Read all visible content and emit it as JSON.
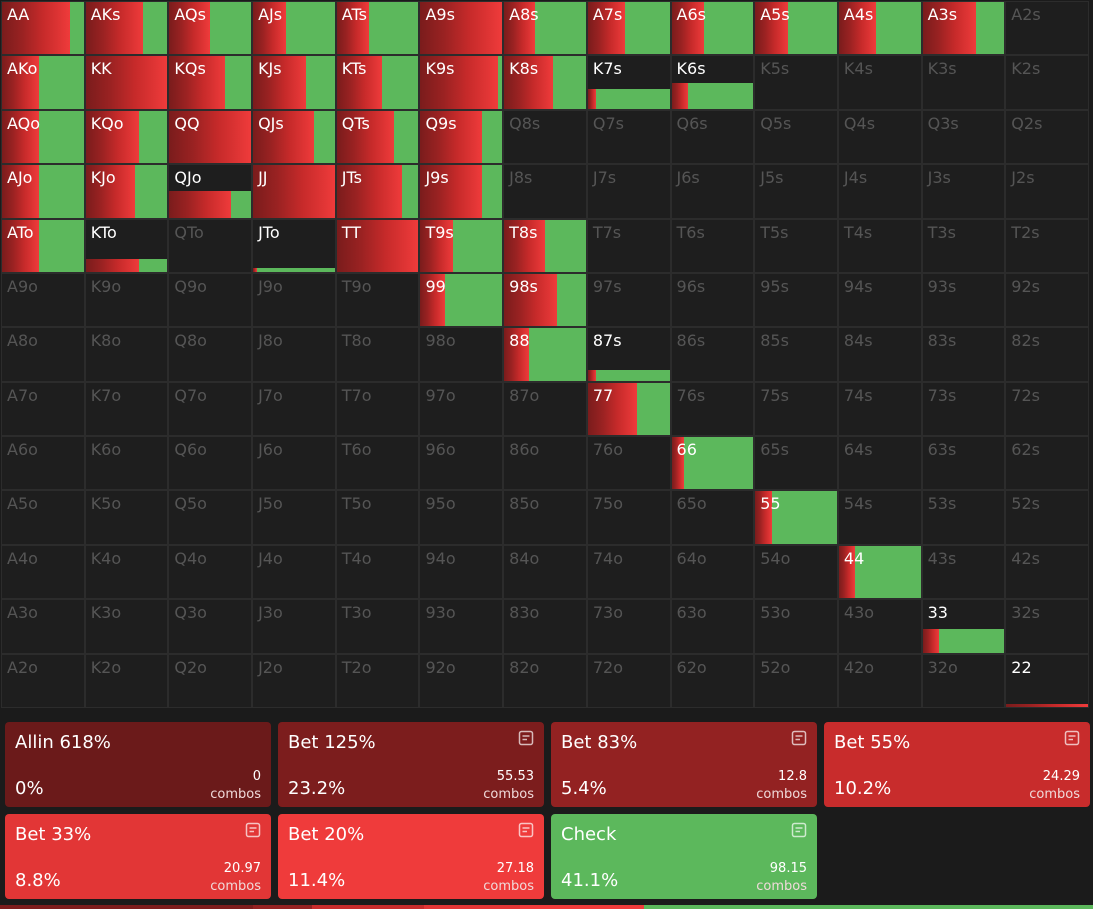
{
  "grid": {
    "rows": [
      [
        {
          "hand": "AA",
          "bet": 83,
          "check": 17,
          "weight": 100
        },
        {
          "hand": "AKs",
          "bet": 70,
          "check": 30,
          "weight": 100
        },
        {
          "hand": "AQs",
          "bet": 50,
          "check": 50,
          "weight": 100
        },
        {
          "hand": "AJs",
          "bet": 40,
          "check": 60,
          "weight": 100
        },
        {
          "hand": "ATs",
          "bet": 40,
          "check": 60,
          "weight": 100
        },
        {
          "hand": "A9s",
          "bet": 100,
          "check": 0,
          "weight": 100
        },
        {
          "hand": "A8s",
          "bet": 38,
          "check": 62,
          "weight": 100
        },
        {
          "hand": "A7s",
          "bet": 45,
          "check": 55,
          "weight": 100
        },
        {
          "hand": "A6s",
          "bet": 40,
          "check": 60,
          "weight": 100
        },
        {
          "hand": "A5s",
          "bet": 40,
          "check": 60,
          "weight": 100
        },
        {
          "hand": "A4s",
          "bet": 45,
          "check": 55,
          "weight": 100
        },
        {
          "hand": "A3s",
          "bet": 65,
          "check": 35,
          "weight": 100
        },
        {
          "hand": "A2s"
        }
      ],
      [
        {
          "hand": "AKo",
          "bet": 45,
          "check": 55,
          "weight": 100
        },
        {
          "hand": "KK",
          "bet": 100,
          "check": 0,
          "weight": 100
        },
        {
          "hand": "KQs",
          "bet": 68,
          "check": 32,
          "weight": 100
        },
        {
          "hand": "KJs",
          "bet": 65,
          "check": 35,
          "weight": 100
        },
        {
          "hand": "KTs",
          "bet": 55,
          "check": 45,
          "weight": 100
        },
        {
          "hand": "K9s",
          "bet": 95,
          "check": 5,
          "weight": 100
        },
        {
          "hand": "K8s",
          "bet": 60,
          "check": 40,
          "weight": 100
        },
        {
          "hand": "K7s",
          "bet": 10,
          "check": 90,
          "weight": 38
        },
        {
          "hand": "K6s",
          "bet": 20,
          "check": 80,
          "weight": 50
        },
        {
          "hand": "K5s"
        },
        {
          "hand": "K4s"
        },
        {
          "hand": "K3s"
        },
        {
          "hand": "K2s"
        }
      ],
      [
        {
          "hand": "AQo",
          "bet": 45,
          "check": 55,
          "weight": 100
        },
        {
          "hand": "KQo",
          "bet": 65,
          "check": 35,
          "weight": 100
        },
        {
          "hand": "QQ",
          "bet": 100,
          "check": 0,
          "weight": 100
        },
        {
          "hand": "QJs",
          "bet": 75,
          "check": 25,
          "weight": 100
        },
        {
          "hand": "QTs",
          "bet": 70,
          "check": 30,
          "weight": 100
        },
        {
          "hand": "Q9s",
          "bet": 75,
          "check": 25,
          "weight": 100
        },
        {
          "hand": "Q8s"
        },
        {
          "hand": "Q7s"
        },
        {
          "hand": "Q6s"
        },
        {
          "hand": "Q5s"
        },
        {
          "hand": "Q4s"
        },
        {
          "hand": "Q3s"
        },
        {
          "hand": "Q2s"
        }
      ],
      [
        {
          "hand": "AJo",
          "bet": 45,
          "check": 55,
          "weight": 100
        },
        {
          "hand": "KJo",
          "bet": 60,
          "check": 40,
          "weight": 100
        },
        {
          "hand": "QJo",
          "bet": 75,
          "check": 25,
          "weight": 50
        },
        {
          "hand": "JJ",
          "bet": 100,
          "check": 0,
          "weight": 100
        },
        {
          "hand": "JTs",
          "bet": 80,
          "check": 20,
          "weight": 100
        },
        {
          "hand": "J9s",
          "bet": 75,
          "check": 25,
          "weight": 100
        },
        {
          "hand": "J8s"
        },
        {
          "hand": "J7s"
        },
        {
          "hand": "J6s"
        },
        {
          "hand": "J5s"
        },
        {
          "hand": "J4s"
        },
        {
          "hand": "J3s"
        },
        {
          "hand": "J2s"
        }
      ],
      [
        {
          "hand": "ATo",
          "bet": 45,
          "check": 55,
          "weight": 100
        },
        {
          "hand": "KTo",
          "bet": 65,
          "check": 35,
          "weight": 25
        },
        {
          "hand": "QTo"
        },
        {
          "hand": "JTo",
          "bet": 5,
          "check": 95,
          "weight": 8
        },
        {
          "hand": "TT",
          "bet": 100,
          "check": 0,
          "weight": 100
        },
        {
          "hand": "T9s",
          "bet": 40,
          "check": 60,
          "weight": 100
        },
        {
          "hand": "T8s",
          "bet": 50,
          "check": 50,
          "weight": 100
        },
        {
          "hand": "T7s"
        },
        {
          "hand": "T6s"
        },
        {
          "hand": "T5s"
        },
        {
          "hand": "T4s"
        },
        {
          "hand": "T3s"
        },
        {
          "hand": "T2s"
        }
      ],
      [
        {
          "hand": "A9o"
        },
        {
          "hand": "K9o"
        },
        {
          "hand": "Q9o"
        },
        {
          "hand": "J9o"
        },
        {
          "hand": "T9o"
        },
        {
          "hand": "99",
          "bet": 30,
          "check": 70,
          "weight": 100
        },
        {
          "hand": "98s",
          "bet": 65,
          "check": 35,
          "weight": 100
        },
        {
          "hand": "97s"
        },
        {
          "hand": "96s"
        },
        {
          "hand": "95s"
        },
        {
          "hand": "94s"
        },
        {
          "hand": "93s"
        },
        {
          "hand": "92s"
        }
      ],
      [
        {
          "hand": "A8o"
        },
        {
          "hand": "K8o"
        },
        {
          "hand": "Q8o"
        },
        {
          "hand": "J8o"
        },
        {
          "hand": "T8o"
        },
        {
          "hand": "98o"
        },
        {
          "hand": "88",
          "bet": 30,
          "check": 70,
          "weight": 100
        },
        {
          "hand": "87s",
          "bet": 10,
          "check": 90,
          "weight": 20
        },
        {
          "hand": "86s"
        },
        {
          "hand": "85s"
        },
        {
          "hand": "84s"
        },
        {
          "hand": "83s"
        },
        {
          "hand": "82s"
        }
      ],
      [
        {
          "hand": "A7o"
        },
        {
          "hand": "K7o"
        },
        {
          "hand": "Q7o"
        },
        {
          "hand": "J7o"
        },
        {
          "hand": "T7o"
        },
        {
          "hand": "97o"
        },
        {
          "hand": "87o"
        },
        {
          "hand": "77",
          "bet": 60,
          "check": 40,
          "weight": 100
        },
        {
          "hand": "76s"
        },
        {
          "hand": "75s"
        },
        {
          "hand": "74s"
        },
        {
          "hand": "73s"
        },
        {
          "hand": "72s"
        }
      ],
      [
        {
          "hand": "A6o"
        },
        {
          "hand": "K6o"
        },
        {
          "hand": "Q6o"
        },
        {
          "hand": "J6o"
        },
        {
          "hand": "T6o"
        },
        {
          "hand": "96o"
        },
        {
          "hand": "86o"
        },
        {
          "hand": "76o"
        },
        {
          "hand": "66",
          "bet": 15,
          "check": 85,
          "weight": 100
        },
        {
          "hand": "65s"
        },
        {
          "hand": "64s"
        },
        {
          "hand": "63s"
        },
        {
          "hand": "62s"
        }
      ],
      [
        {
          "hand": "A5o"
        },
        {
          "hand": "K5o"
        },
        {
          "hand": "Q5o"
        },
        {
          "hand": "J5o"
        },
        {
          "hand": "T5o"
        },
        {
          "hand": "95o"
        },
        {
          "hand": "85o"
        },
        {
          "hand": "75o"
        },
        {
          "hand": "65o"
        },
        {
          "hand": "55",
          "bet": 20,
          "check": 80,
          "weight": 100
        },
        {
          "hand": "54s"
        },
        {
          "hand": "53s"
        },
        {
          "hand": "52s"
        }
      ],
      [
        {
          "hand": "A4o"
        },
        {
          "hand": "K4o"
        },
        {
          "hand": "Q4o"
        },
        {
          "hand": "J4o"
        },
        {
          "hand": "T4o"
        },
        {
          "hand": "94o"
        },
        {
          "hand": "84o"
        },
        {
          "hand": "74o"
        },
        {
          "hand": "64o"
        },
        {
          "hand": "54o"
        },
        {
          "hand": "44",
          "bet": 20,
          "check": 80,
          "weight": 100
        },
        {
          "hand": "43s"
        },
        {
          "hand": "42s"
        }
      ],
      [
        {
          "hand": "A3o"
        },
        {
          "hand": "K3o"
        },
        {
          "hand": "Q3o"
        },
        {
          "hand": "J3o"
        },
        {
          "hand": "T3o"
        },
        {
          "hand": "93o"
        },
        {
          "hand": "83o"
        },
        {
          "hand": "73o"
        },
        {
          "hand": "63o"
        },
        {
          "hand": "53o"
        },
        {
          "hand": "43o"
        },
        {
          "hand": "33",
          "bet": 20,
          "check": 80,
          "weight": 45
        },
        {
          "hand": "32s"
        }
      ],
      [
        {
          "hand": "A2o"
        },
        {
          "hand": "K2o"
        },
        {
          "hand": "Q2o"
        },
        {
          "hand": "J2o"
        },
        {
          "hand": "T2o"
        },
        {
          "hand": "92o"
        },
        {
          "hand": "82o"
        },
        {
          "hand": "72o"
        },
        {
          "hand": "62o"
        },
        {
          "hand": "52o"
        },
        {
          "hand": "42o"
        },
        {
          "hand": "32o"
        },
        {
          "hand": "22",
          "bet": 100,
          "check": 0,
          "weight": 6
        }
      ]
    ]
  },
  "actions": [
    {
      "name": "Allin 618%",
      "percent": {
        "value": 0,
        "label": "0%"
      },
      "combos": "0",
      "unit": "combos",
      "color": "#6b1a1a"
    },
    {
      "name": "Bet 125%",
      "percent": {
        "value": 23.2,
        "label": "23.2%"
      },
      "combos": "55.53",
      "unit": "combos",
      "color": "#7c1d1d"
    },
    {
      "name": "Bet 83%",
      "percent": {
        "value": 5.4,
        "label": "5.4%"
      },
      "combos": "12.8",
      "unit": "combos",
      "color": "#932222"
    },
    {
      "name": "Bet 55%",
      "percent": {
        "value": 10.2,
        "label": "10.2%"
      },
      "combos": "24.29",
      "unit": "combos",
      "color": "#c82c2c"
    },
    {
      "name": "Bet 33%",
      "percent": {
        "value": 8.8,
        "label": "8.8%"
      },
      "combos": "20.97",
      "unit": "combos",
      "color": "#e23636"
    },
    {
      "name": "Bet 20%",
      "percent": {
        "value": 11.4,
        "label": "11.4%"
      },
      "combos": "27.18",
      "unit": "combos",
      "color": "#ef3b3b"
    },
    {
      "name": "Check",
      "percent": {
        "value": 41.1,
        "label": "41.1%"
      },
      "combos": "98.15",
      "unit": "combos",
      "color": "#5cb85c"
    }
  ]
}
